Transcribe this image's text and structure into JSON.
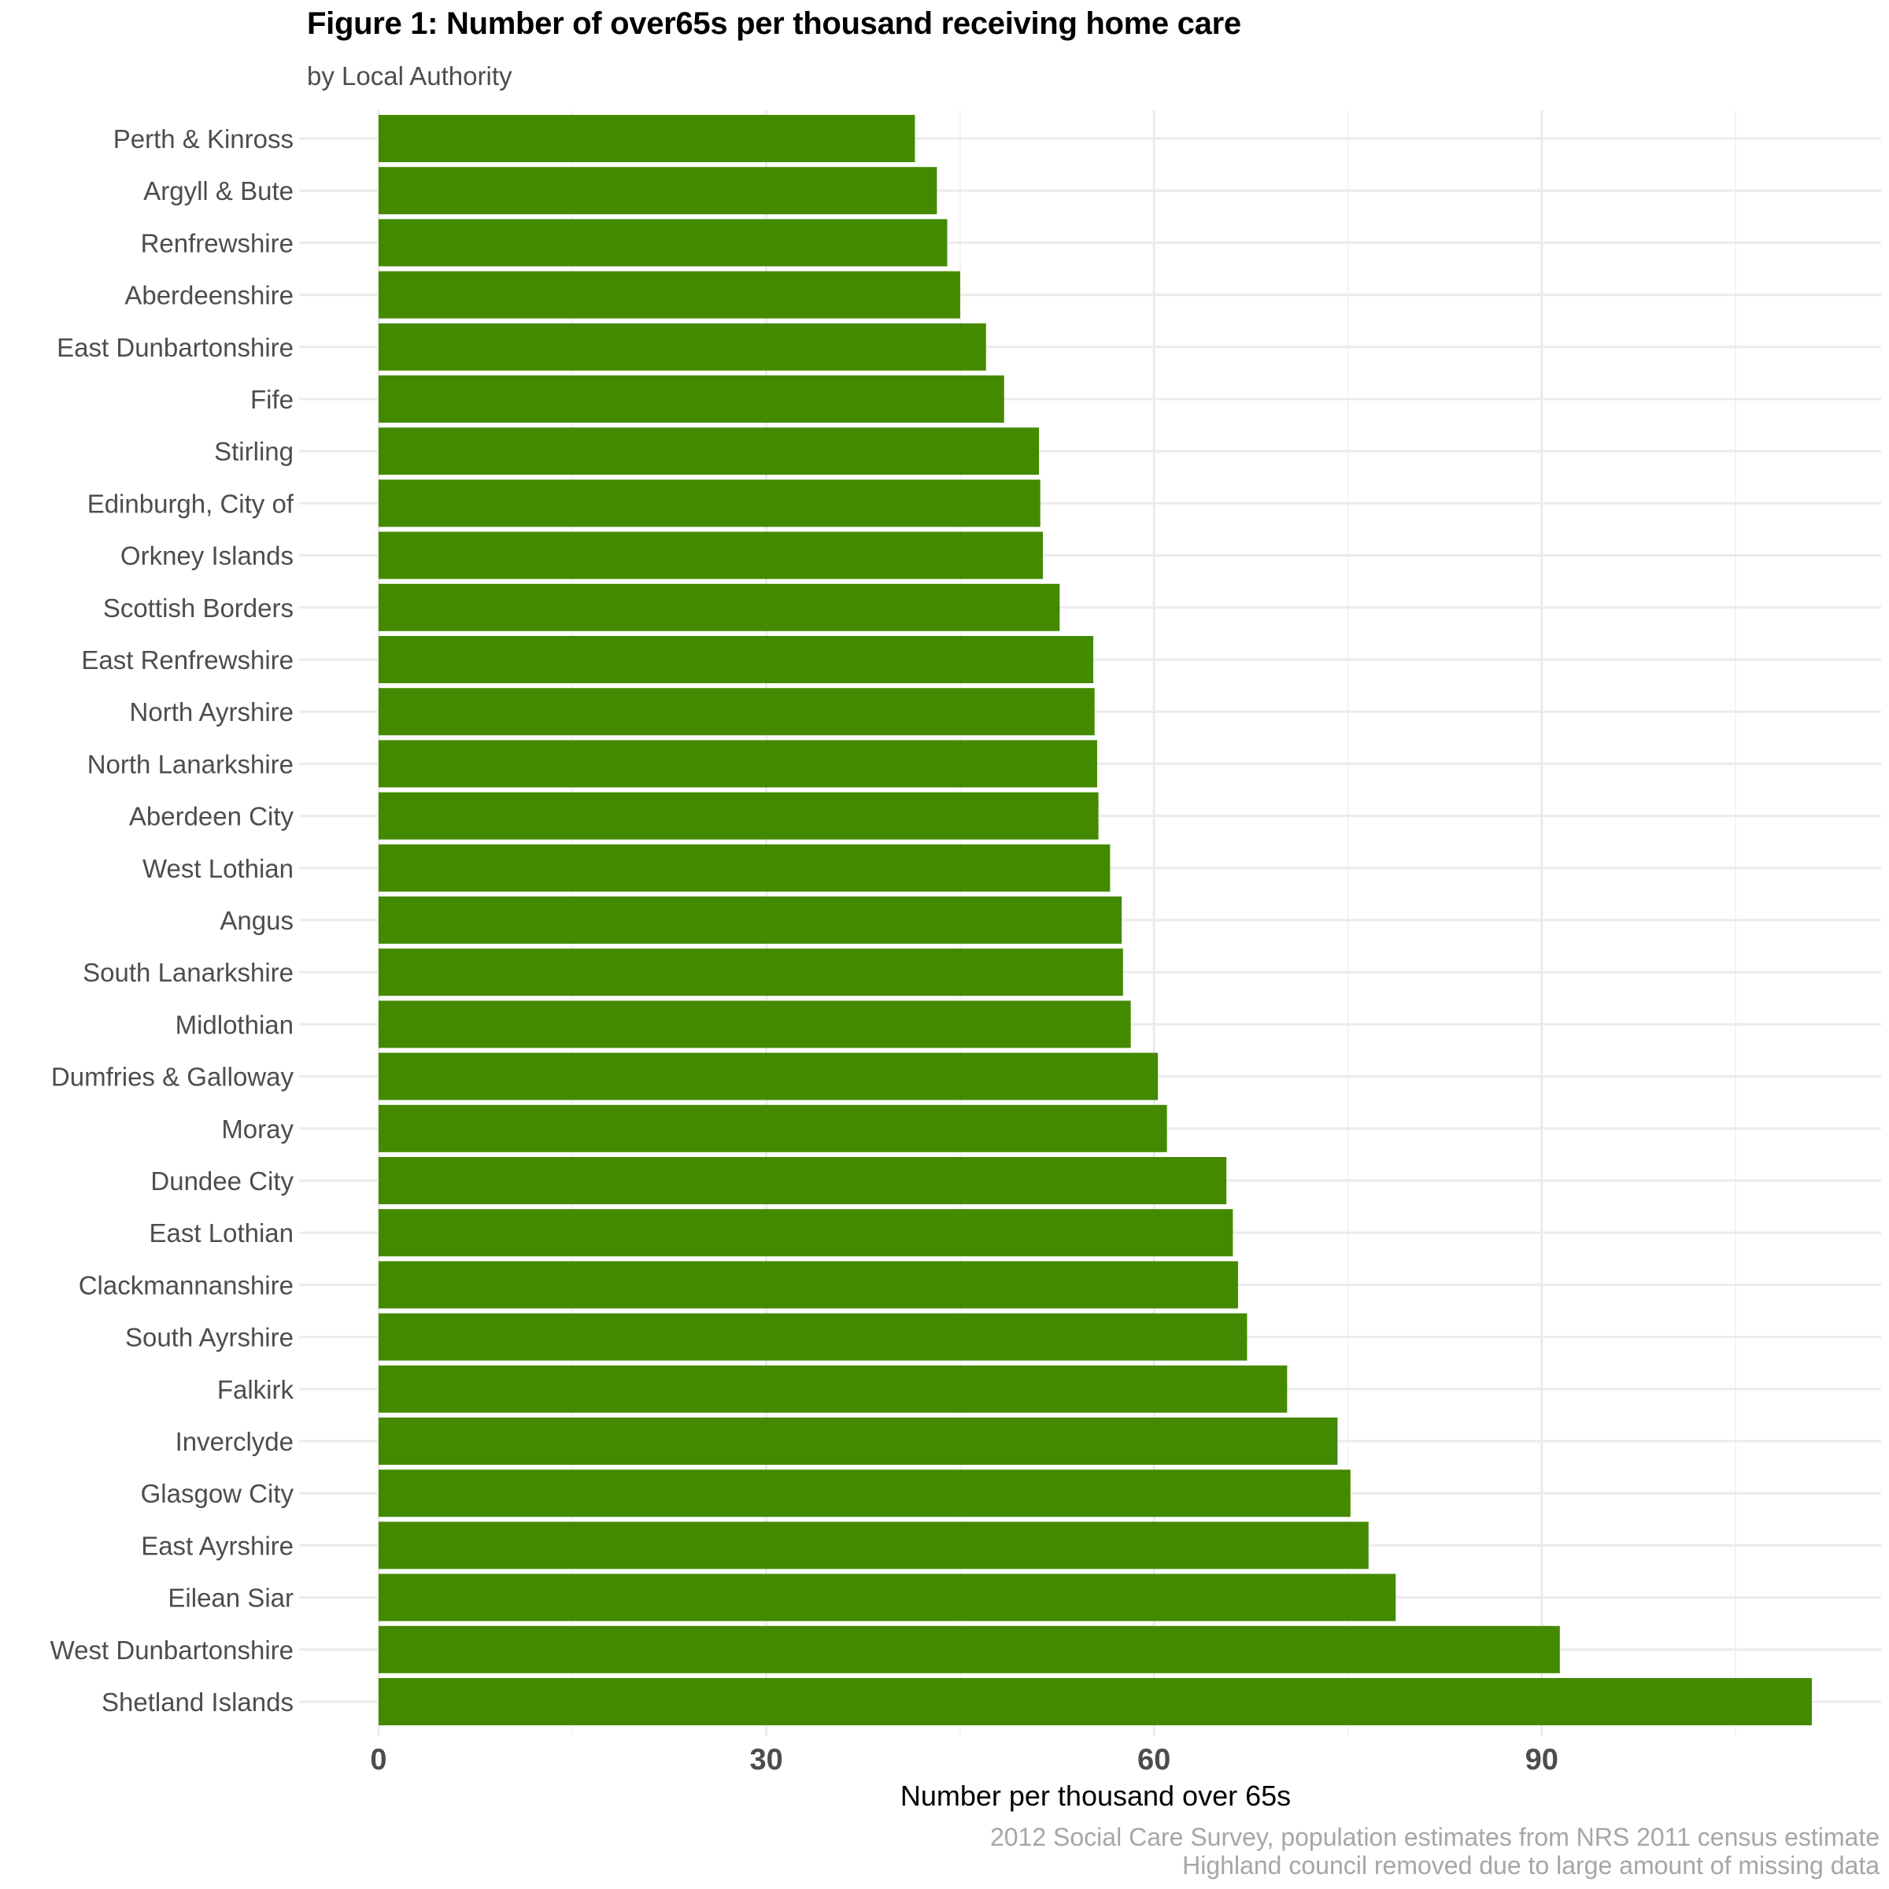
{
  "chart_data": {
    "type": "bar",
    "orientation": "horizontal",
    "title": "Figure 1: Number of over65s per thousand receiving home care",
    "subtitle": "by Local Authority",
    "xlabel": "Number per thousand over 65s",
    "ylabel": "",
    "xlim": [
      0,
      115
    ],
    "x_ticks": [
      0,
      30,
      60,
      90
    ],
    "grid": true,
    "legend": "none",
    "bar_color": "#448a00",
    "caption": [
      "2012 Social Care Survey, population estimates from NRS 2011 census estimate",
      "Highland council removed due to large amount of missing data"
    ],
    "categories": [
      "Perth & Kinross",
      "Argyll & Bute",
      "Renfrewshire",
      "Aberdeenshire",
      "East Dunbartonshire",
      "Fife",
      "Stirling",
      "Edinburgh, City of",
      "Orkney Islands",
      "Scottish Borders",
      "East Renfrewshire",
      "North Ayrshire",
      "North Lanarkshire",
      "Aberdeen City",
      "West Lothian",
      "Angus",
      "South Lanarkshire",
      "Midlothian",
      "Dumfries & Galloway",
      "Moray",
      "Dundee City",
      "East Lothian",
      "Clackmannanshire",
      "South Ayrshire",
      "Falkirk",
      "Inverclyde",
      "Glasgow City",
      "East Ayrshire",
      "Eilean Siar",
      "West Dunbartonshire",
      "Shetland Islands"
    ],
    "values": [
      41.5,
      43.2,
      44.0,
      45.0,
      47.0,
      48.4,
      51.1,
      51.2,
      51.4,
      52.7,
      55.3,
      55.4,
      55.6,
      55.7,
      56.6,
      57.5,
      57.6,
      58.2,
      60.3,
      61.0,
      65.6,
      66.1,
      66.5,
      67.2,
      70.3,
      74.2,
      75.2,
      76.6,
      78.7,
      91.4,
      110.9
    ]
  }
}
